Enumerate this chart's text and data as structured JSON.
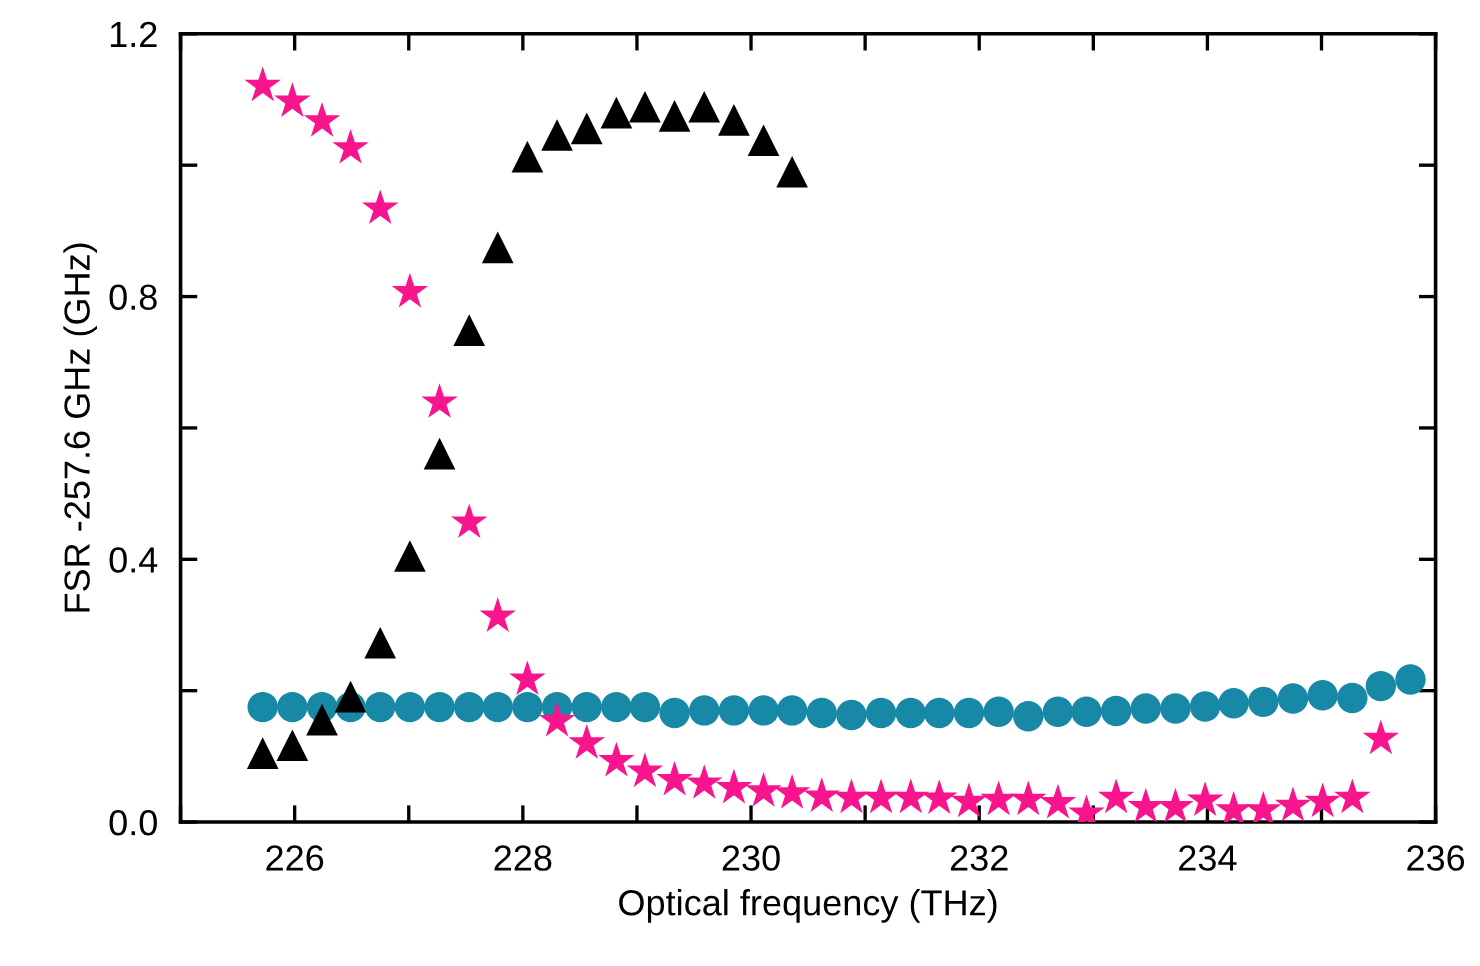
{
  "chart_data": {
    "type": "scatter",
    "xlabel": "Optical frequency (THz)",
    "ylabel": "FSR -257.6 GHz (GHz)",
    "xlim": [
      225,
      236
    ],
    "ylim": [
      0,
      1.2
    ],
    "xticks": [
      {
        "value": 225,
        "label": null
      },
      226,
      {
        "value": 227,
        "label": null
      },
      228,
      {
        "value": 229,
        "label": null
      },
      230,
      {
        "value": 231,
        "label": null
      },
      232,
      {
        "value": 233,
        "label": null
      },
      234,
      {
        "value": 235,
        "label": null
      },
      236
    ],
    "yticks": [
      {
        "value": 0,
        "label": "0.0"
      },
      {
        "value": 0.2,
        "label": null
      },
      0.4,
      {
        "value": 0.6,
        "label": null
      },
      0.8,
      {
        "value": 1.0,
        "label": null
      },
      1.2
    ],
    "grid": false,
    "x": [
      225.72,
      225.98,
      226.24,
      226.49,
      226.75,
      227.01,
      227.27,
      227.53,
      227.78,
      228.04,
      228.3,
      228.56,
      228.82,
      229.07,
      229.33,
      229.59,
      229.85,
      230.11,
      230.36,
      230.62,
      230.88,
      231.14,
      231.4,
      231.65,
      231.91,
      232.17,
      232.43,
      232.69,
      232.94,
      233.2,
      233.46,
      233.72,
      233.98,
      234.23,
      234.49,
      234.75,
      235.01,
      235.27,
      235.52,
      235.78
    ],
    "series": [
      {
        "color": "#000000",
        "marker": "triangle",
        "values": [
          0.105,
          0.117,
          0.156,
          0.191,
          0.273,
          0.405,
          0.561,
          0.749,
          0.875,
          1.013,
          1.046,
          1.056,
          1.08,
          1.089,
          1.075,
          1.089,
          1.069,
          1.038,
          0.99,
          null,
          null,
          null,
          null,
          null,
          null,
          null,
          null,
          null,
          null,
          null,
          null,
          null,
          null,
          null,
          null,
          null,
          null,
          null,
          null,
          null
        ]
      },
      {
        "color": "#f7148c",
        "marker": "star",
        "values": [
          1.121,
          1.097,
          1.067,
          1.026,
          0.934,
          0.807,
          0.639,
          0.456,
          0.313,
          0.217,
          0.154,
          0.12,
          0.093,
          0.077,
          0.064,
          0.059,
          0.052,
          0.047,
          0.044,
          0.039,
          0.037,
          0.037,
          0.037,
          0.036,
          0.031,
          0.034,
          0.034,
          0.029,
          0.013,
          0.037,
          0.023,
          0.023,
          0.033,
          0.018,
          0.018,
          0.025,
          0.031,
          0.037,
          0.127,
          null
        ]
      },
      {
        "color": "#1788a6",
        "marker": "circle",
        "values": [
          0.175,
          0.175,
          0.175,
          0.175,
          0.175,
          0.175,
          0.175,
          0.175,
          0.175,
          0.175,
          0.175,
          0.175,
          0.175,
          0.175,
          0.166,
          0.17,
          0.17,
          0.17,
          0.17,
          0.166,
          0.163,
          0.166,
          0.166,
          0.166,
          0.166,
          0.168,
          0.161,
          0.168,
          0.168,
          0.169,
          0.173,
          0.173,
          0.176,
          0.181,
          0.183,
          0.188,
          0.193,
          0.189,
          0.207,
          0.217
        ]
      }
    ]
  }
}
